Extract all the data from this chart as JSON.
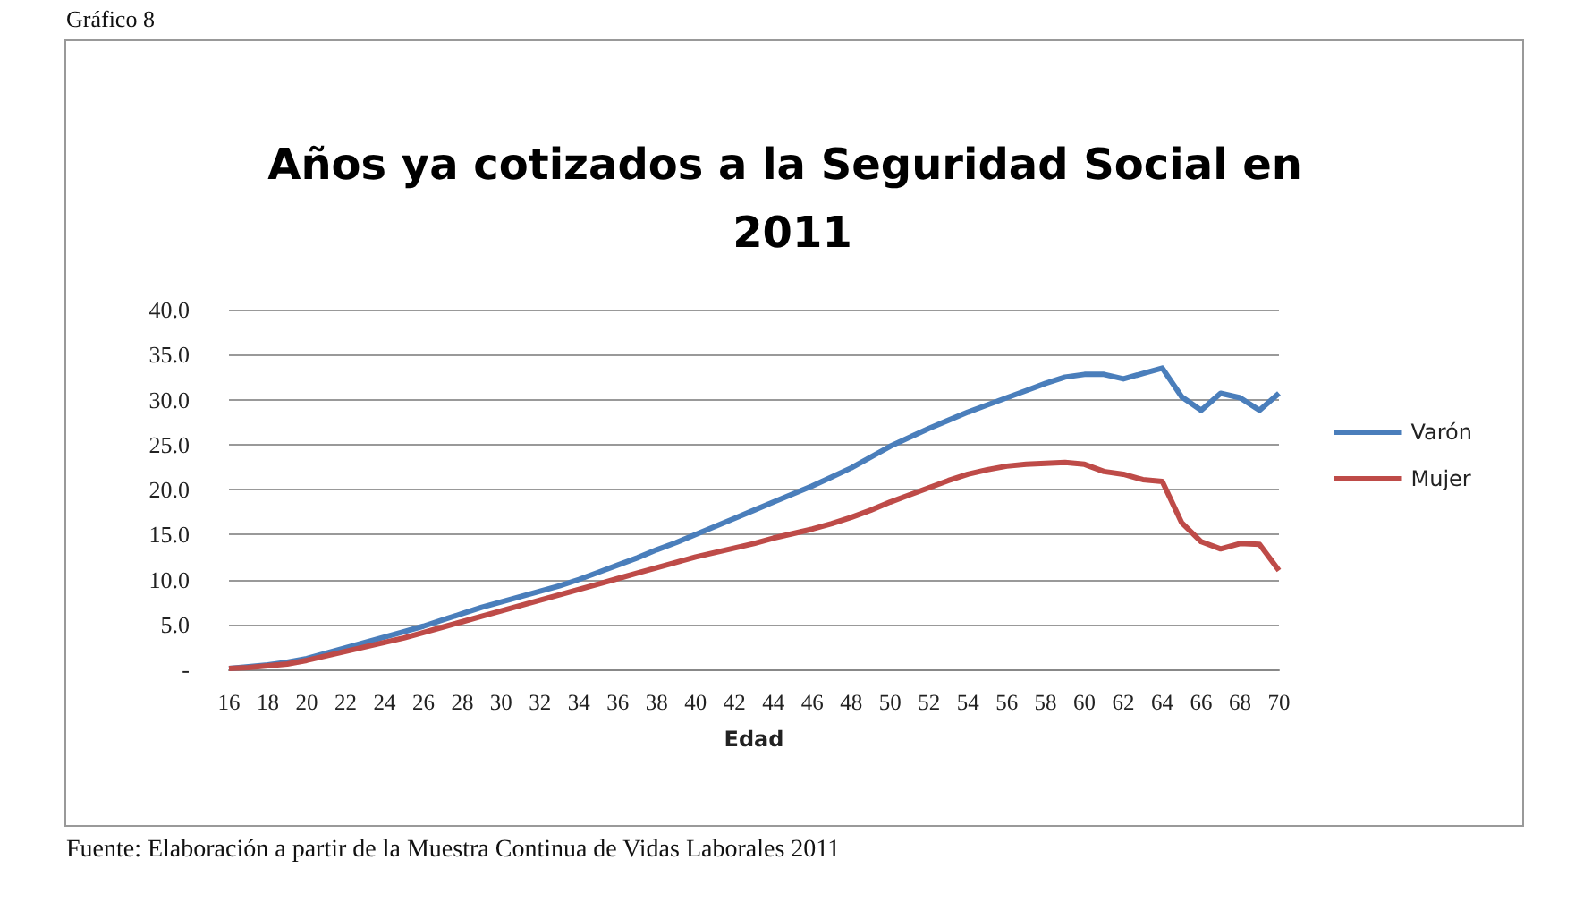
{
  "chart_data": {
    "type": "line",
    "title": "Años ya cotizados a la Seguridad Social en 2011",
    "xlabel": "Edad",
    "annotations": [
      "Gráfico 8",
      "Fuente: Elaboración a partir de la Muestra Continua de Vidas Laborales 2011"
    ],
    "categories": [
      "16",
      null,
      "18",
      null,
      "20",
      null,
      "22",
      null,
      "24",
      null,
      "26",
      null,
      "28",
      null,
      "30",
      null,
      "32",
      null,
      "34",
      null,
      "36",
      null,
      "38",
      null,
      "40",
      null,
      "42",
      null,
      "44",
      null,
      "46",
      null,
      "48",
      null,
      "50",
      null,
      "52",
      null,
      "54",
      null,
      "56",
      null,
      "58",
      null,
      "60",
      null,
      "62",
      null,
      "64",
      null,
      "66",
      null,
      "68",
      null,
      "70"
    ],
    "series": [
      {
        "name": "Varón",
        "color": "#4a7ebb",
        "values": [
          0.1,
          0.3,
          0.5,
          0.8,
          1.2,
          1.8,
          2.4,
          3.0,
          3.6,
          4.2,
          4.8,
          5.5,
          6.2,
          6.9,
          7.5,
          8.1,
          8.7,
          9.3,
          10.0,
          10.8,
          11.6,
          12.4,
          13.3,
          14.1,
          15.0,
          15.9,
          16.8,
          17.7,
          18.6,
          19.5,
          20.4,
          21.4,
          22.4,
          23.6,
          24.8,
          25.8,
          26.8,
          27.7,
          28.6,
          29.4,
          30.2,
          31.0,
          31.8,
          32.5,
          32.8,
          32.8,
          32.3,
          32.9,
          33.5,
          30.3,
          28.8,
          30.7,
          30.2,
          28.8,
          30.7
        ]
      },
      {
        "name": "Mujer",
        "color": "#be4b48",
        "values": [
          0.1,
          0.2,
          0.4,
          0.6,
          1.0,
          1.5,
          2.0,
          2.5,
          3.0,
          3.5,
          4.1,
          4.7,
          5.3,
          5.9,
          6.5,
          7.1,
          7.7,
          8.3,
          8.9,
          9.5,
          10.1,
          10.7,
          11.3,
          11.9,
          12.5,
          13.0,
          13.5,
          14.0,
          14.6,
          15.1,
          15.6,
          16.2,
          16.9,
          17.7,
          18.6,
          19.4,
          20.2,
          21.0,
          21.7,
          22.2,
          22.6,
          22.8,
          22.9,
          23.0,
          22.8,
          22.0,
          21.7,
          21.1,
          20.9,
          16.3,
          14.2,
          13.4,
          14.0,
          13.9,
          11.0
        ]
      }
    ],
    "ylim": [
      0,
      40
    ],
    "yticks": [
      {
        "value": 0,
        "label": "-"
      },
      {
        "value": 5,
        "label": "5.0"
      },
      {
        "value": 10,
        "label": "10.0"
      },
      {
        "value": 15,
        "label": "15.0"
      },
      {
        "value": 20,
        "label": "20.0"
      },
      {
        "value": 25,
        "label": "25.0"
      },
      {
        "value": 30,
        "label": "30.0"
      },
      {
        "value": 35,
        "label": "35.0"
      },
      {
        "value": 40,
        "label": "40.0"
      }
    ],
    "grid": "y",
    "legend": "right",
    "marker": "none",
    "line_style": "solid"
  }
}
